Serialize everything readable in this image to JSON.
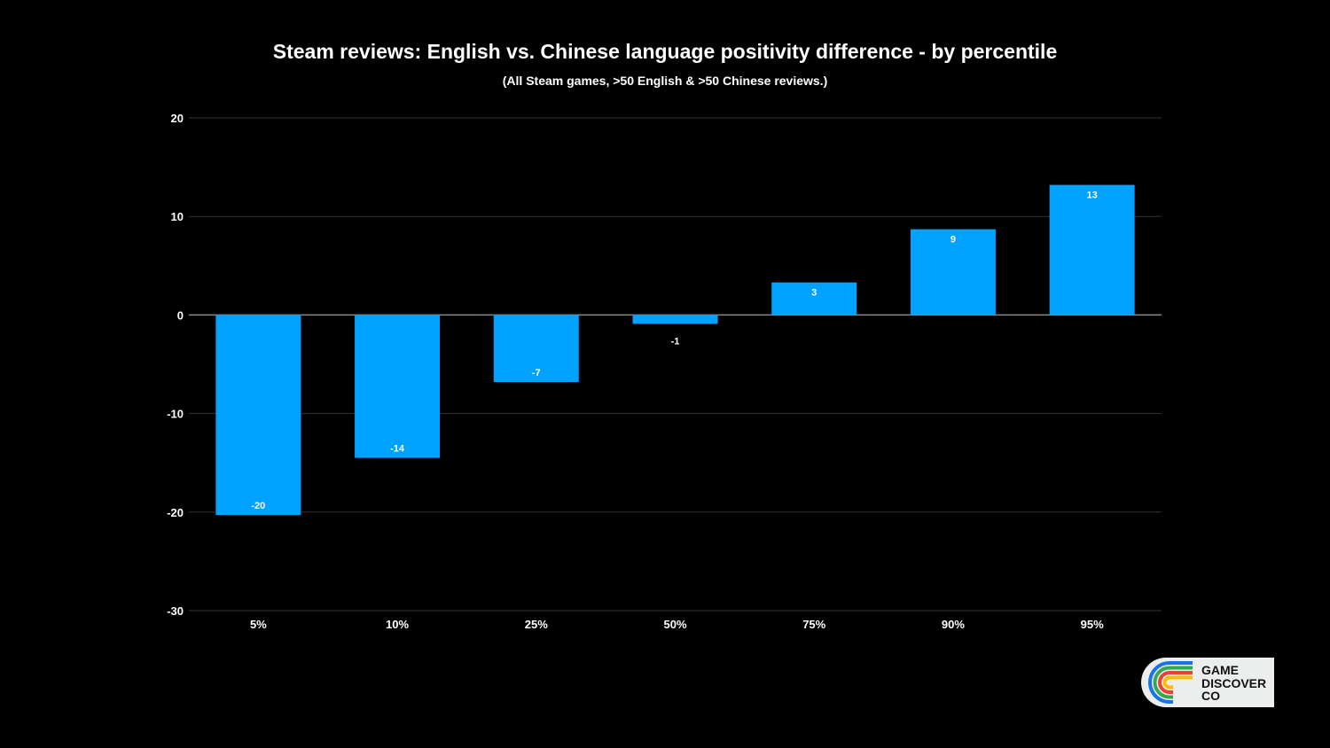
{
  "chart_data": {
    "type": "bar",
    "title": "Steam reviews: English vs. Chinese language positivity difference - by percentile",
    "subtitle": "(All Steam games, >50 English & >50 Chinese reviews.)",
    "categories": [
      "5%",
      "10%",
      "25%",
      "50%",
      "75%",
      "90%",
      "95%"
    ],
    "values": [
      -20.3,
      -14.5,
      -6.8,
      -0.9,
      3.3,
      8.7,
      13.2
    ],
    "data_labels": [
      "-20",
      "-14",
      "-7",
      "-1",
      "3",
      "9",
      "13"
    ],
    "ylim": [
      -30,
      20
    ],
    "yticks": [
      20,
      10,
      0,
      -10,
      -20,
      -30
    ],
    "xlabel": "",
    "ylabel": "",
    "grid": true,
    "bar_color": "#00a2ff",
    "background": "#000000"
  },
  "logo": {
    "lines": [
      "GAME",
      "DISCOVER",
      "CO"
    ],
    "colors": [
      "#1a73e8",
      "#34a853",
      "#ea4335",
      "#fbbc04"
    ]
  }
}
